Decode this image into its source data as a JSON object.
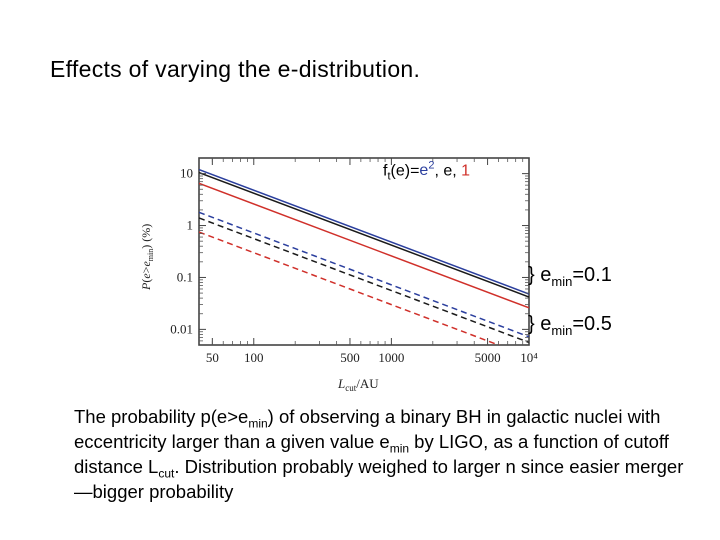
{
  "slide": {
    "title": "Effects of varying the e-distribution."
  },
  "legend_label": {
    "prefix": "f",
    "prefix_sub": "t",
    "middle": "(e)=",
    "blue_base": "e",
    "blue_sup": "2",
    "sep1": ", ",
    "black": "e",
    "sep2": ", ",
    "red": "1"
  },
  "group_labels": [
    {
      "brace": "}",
      "text": " e",
      "sub": "min",
      "value": "=0.1"
    },
    {
      "brace": "}",
      "text": " e",
      "sub": "min",
      "value": "=0.5"
    }
  ],
  "caption": {
    "p1": "The probability p(e>e",
    "s1": "min",
    "p2": ") of observing a binary BH in galactic nuclei with eccentricity larger than a given value e",
    "s2": "min",
    "p3": " by LIGO, as a function of cutoff distance L",
    "s3": "cut",
    "p4": ".  Distribution probably weighed to larger n since easier merger—bigger probability"
  },
  "chart_data": {
    "type": "line",
    "xscale": "log",
    "yscale": "log",
    "xlim": [
      40,
      10000
    ],
    "ylim": [
      0.005,
      20
    ],
    "ylabel": "P(e>e_min) (%)",
    "xlabel": "L_cut/AU",
    "ylabel_parts": {
      "p": "P",
      "open": "(",
      "e": "e",
      "gt": ">",
      "e2": "e",
      "sub": "min",
      "close": ")",
      "unit": "  (%)"
    },
    "xlabel_parts": {
      "base": "L",
      "sub": "cut",
      "rest": "/AU"
    },
    "x_ticks": [
      {
        "value": 50,
        "label": "50"
      },
      {
        "value": 100,
        "label": "100"
      },
      {
        "value": 500,
        "label": "500"
      },
      {
        "value": 1000,
        "label": "1000"
      },
      {
        "value": 5000,
        "label": "5000"
      },
      {
        "value": 10000,
        "label": "10⁴"
      }
    ],
    "y_ticks": [
      {
        "value": 10,
        "label": "10"
      },
      {
        "value": 1,
        "label": "1"
      },
      {
        "value": 0.1,
        "label": "0.1"
      },
      {
        "value": 0.01,
        "label": "0.01"
      }
    ],
    "grid": false,
    "colors": {
      "blue": "#2b3f9e",
      "black": "#1a1a1a",
      "red": "#d0302a"
    },
    "series": [
      {
        "color": "blue",
        "style": "solid",
        "x": [
          40,
          10000
        ],
        "y": [
          12.0,
          0.048
        ]
      },
      {
        "color": "black",
        "style": "solid",
        "x": [
          40,
          10000
        ],
        "y": [
          10.5,
          0.042
        ]
      },
      {
        "color": "red",
        "style": "solid",
        "x": [
          40,
          10000
        ],
        "y": [
          6.5,
          0.026
        ]
      },
      {
        "color": "blue",
        "style": "dashed",
        "x": [
          40,
          10000
        ],
        "y": [
          1.8,
          0.0072
        ]
      },
      {
        "color": "black",
        "style": "dashed",
        "x": [
          40,
          10000
        ],
        "y": [
          1.4,
          0.0056
        ]
      },
      {
        "color": "red",
        "style": "dashed",
        "x": [
          40,
          10000
        ],
        "y": [
          0.75,
          0.003
        ]
      }
    ]
  }
}
